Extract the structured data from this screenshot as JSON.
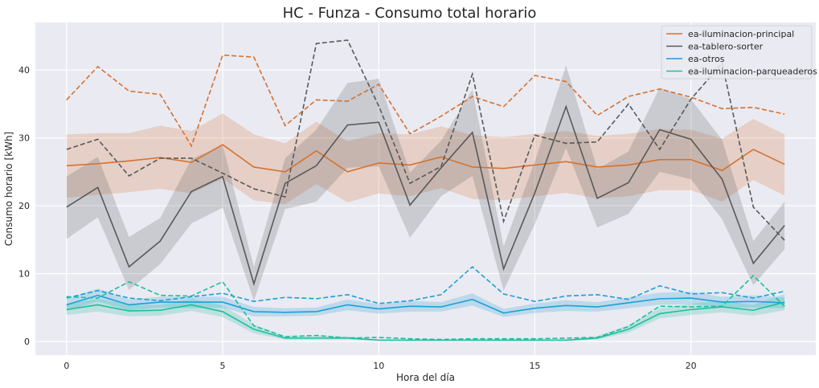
{
  "chart_data": {
    "type": "line",
    "title": "HC - Funza - Consumo total horario",
    "xlabel": "Hora del día",
    "ylabel": "Consumo horario [kWh]",
    "xlim": [
      -1,
      24
    ],
    "ylim": [
      -2,
      47
    ],
    "xticks": [
      0,
      5,
      10,
      15,
      20
    ],
    "yticks": [
      0,
      10,
      20,
      30,
      40
    ],
    "grid": true,
    "legend_position": "top-right",
    "x": [
      0,
      1,
      2,
      3,
      4,
      5,
      6,
      7,
      8,
      9,
      10,
      11,
      12,
      13,
      14,
      15,
      16,
      17,
      18,
      19,
      20,
      21,
      22,
      23
    ],
    "series": [
      {
        "name": "ea-iluminacion-principal",
        "color": "#d5722f",
        "mean": [
          25.9,
          26.2,
          26.6,
          27.1,
          26.4,
          29.0,
          25.7,
          25.0,
          28.1,
          25.0,
          26.3,
          26.0,
          27.2,
          25.7,
          25.5,
          26.0,
          26.5,
          25.7,
          26.0,
          26.8,
          26.8,
          25.2,
          28.3,
          26.1
        ],
        "lower": [
          21.2,
          21.6,
          22.0,
          22.5,
          21.8,
          24.0,
          20.8,
          20.2,
          23.2,
          20.5,
          21.8,
          21.4,
          22.6,
          21.0,
          20.8,
          21.4,
          21.9,
          21.1,
          21.4,
          22.3,
          22.3,
          20.6,
          23.8,
          21.5
        ],
        "upper": [
          30.5,
          30.7,
          30.7,
          31.8,
          31.0,
          33.6,
          30.5,
          29.2,
          32.4,
          29.5,
          30.7,
          30.5,
          31.7,
          30.4,
          30.1,
          30.6,
          31.0,
          30.3,
          30.6,
          31.3,
          31.2,
          29.9,
          32.8,
          30.5
        ],
        "max": [
          35.6,
          40.5,
          36.9,
          36.4,
          28.8,
          42.2,
          41.9,
          31.8,
          35.6,
          35.4,
          37.9,
          30.6,
          33.2,
          36.1,
          34.6,
          39.2,
          38.3,
          33.3,
          36.1,
          37.2,
          36.0,
          34.3,
          34.5,
          33.5
        ]
      },
      {
        "name": "ea-tablero-sorter",
        "color": "#595959",
        "mean": [
          19.8,
          22.7,
          11.0,
          14.8,
          22.1,
          24.3,
          8.5,
          23.3,
          25.9,
          31.9,
          32.3,
          20.1,
          25.6,
          30.8,
          10.7,
          21.9,
          34.6,
          21.1,
          23.4,
          31.2,
          29.8,
          23.9,
          11.5,
          17.1
        ],
        "lower": [
          15.1,
          18.3,
          7.6,
          11.4,
          17.4,
          19.7,
          6.0,
          19.5,
          20.6,
          25.6,
          25.8,
          15.3,
          21.4,
          24.4,
          7.5,
          17.3,
          28.5,
          16.8,
          18.8,
          25.0,
          23.9,
          18.0,
          8.3,
          13.6
        ],
        "upper": [
          24.3,
          27.2,
          15.4,
          18.2,
          26.9,
          28.9,
          11.0,
          27.0,
          31.2,
          38.1,
          38.7,
          24.9,
          29.6,
          37.1,
          14.0,
          26.5,
          40.7,
          25.4,
          28.0,
          37.4,
          35.7,
          29.7,
          14.8,
          20.6
        ],
        "max": [
          28.3,
          29.8,
          24.4,
          27.0,
          27.0,
          24.8,
          22.5,
          21.3,
          43.9,
          44.4,
          34.7,
          23.3,
          25.8,
          39.4,
          17.7,
          30.4,
          29.2,
          29.4,
          35.0,
          28.3,
          35.7,
          41.0,
          19.8,
          14.9
        ]
      },
      {
        "name": "ea-otros",
        "color": "#1ba0d7",
        "mean": [
          5.4,
          6.8,
          5.4,
          5.8,
          5.8,
          5.8,
          4.4,
          4.3,
          4.4,
          5.4,
          4.8,
          5.2,
          5.1,
          6.2,
          4.2,
          4.9,
          5.3,
          5.1,
          5.7,
          6.3,
          6.4,
          5.8,
          5.9,
          5.7
        ],
        "lower": [
          4.5,
          5.9,
          4.6,
          5.0,
          4.9,
          5.0,
          3.7,
          3.7,
          3.8,
          4.6,
          4.1,
          4.4,
          4.4,
          5.3,
          3.6,
          4.2,
          4.5,
          4.4,
          4.9,
          5.4,
          5.5,
          5.0,
          5.0,
          4.9
        ],
        "upper": [
          6.3,
          7.8,
          6.2,
          6.6,
          6.6,
          6.6,
          5.1,
          4.9,
          5.0,
          6.2,
          5.5,
          6.0,
          5.8,
          7.1,
          4.8,
          5.6,
          6.1,
          5.8,
          6.5,
          7.2,
          7.3,
          6.6,
          6.8,
          6.5
        ],
        "max": [
          6.4,
          7.5,
          6.4,
          6.0,
          6.6,
          7.1,
          5.9,
          6.5,
          6.3,
          6.9,
          5.6,
          6.0,
          6.9,
          11.0,
          7.0,
          5.9,
          6.7,
          6.9,
          6.2,
          8.2,
          7.0,
          7.2,
          6.4,
          7.4
        ]
      },
      {
        "name": "ea-iluminacion-parqueaderos",
        "color": "#1cbf9b",
        "mean": [
          4.7,
          5.4,
          4.5,
          4.6,
          5.4,
          4.4,
          1.8,
          0.5,
          0.5,
          0.5,
          0.2,
          0.2,
          0.2,
          0.2,
          0.2,
          0.2,
          0.2,
          0.5,
          1.8,
          4.1,
          4.7,
          5.1,
          4.6,
          5.8
        ],
        "lower": [
          3.9,
          4.4,
          3.7,
          3.8,
          4.5,
          3.6,
          1.2,
          0.3,
          0.3,
          0.3,
          0.1,
          0.1,
          0.1,
          0.1,
          0.1,
          0.1,
          0.1,
          0.3,
          1.3,
          3.4,
          3.9,
          4.3,
          3.8,
          4.6
        ],
        "upper": [
          5.6,
          6.3,
          5.4,
          5.4,
          6.3,
          5.3,
          2.5,
          0.8,
          0.8,
          0.8,
          0.3,
          0.3,
          0.3,
          0.3,
          0.3,
          0.3,
          0.3,
          0.8,
          2.4,
          4.9,
          5.6,
          6.0,
          5.4,
          7.0
        ],
        "max": [
          6.6,
          6.4,
          8.8,
          6.8,
          6.7,
          8.8,
          2.3,
          0.7,
          0.9,
          0.5,
          0.6,
          0.4,
          0.3,
          0.4,
          0.4,
          0.4,
          0.5,
          0.6,
          2.2,
          5.2,
          5.1,
          5.2,
          9.7,
          5.2
        ]
      }
    ]
  }
}
